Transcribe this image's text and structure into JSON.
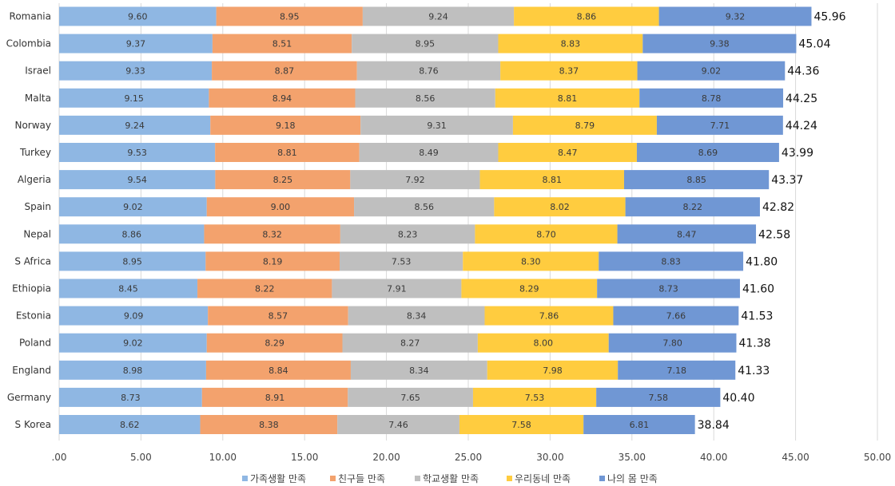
{
  "chart_data": {
    "type": "bar",
    "orientation": "horizontal",
    "stacked": true,
    "categories": [
      "Romania",
      "Colombia",
      "Israel",
      "Malta",
      "Norway",
      "Turkey",
      "Algeria",
      "Spain",
      "Nepal",
      "S Africa",
      "Ethiopia",
      "Estonia",
      "Poland",
      "England",
      "Germany",
      "S Korea"
    ],
    "series": [
      {
        "name": "가족생활 만족",
        "color": "#8fb7e3",
        "values": [
          9.6,
          9.37,
          9.33,
          9.15,
          9.24,
          9.53,
          9.54,
          9.02,
          8.86,
          8.95,
          8.45,
          9.09,
          9.02,
          8.98,
          8.73,
          8.62
        ]
      },
      {
        "name": "친구들 만족",
        "color": "#f3a26d",
        "values": [
          8.95,
          8.51,
          8.87,
          8.94,
          9.18,
          8.81,
          8.25,
          9.0,
          8.32,
          8.19,
          8.22,
          8.57,
          8.29,
          8.84,
          8.91,
          8.38
        ]
      },
      {
        "name": "학교생활 만족",
        "color": "#bfbfbf",
        "values": [
          9.24,
          8.95,
          8.76,
          8.56,
          9.31,
          8.49,
          7.92,
          8.56,
          8.23,
          7.53,
          7.91,
          8.34,
          8.27,
          8.34,
          7.65,
          7.46
        ]
      },
      {
        "name": "우리동네 만족",
        "color": "#ffcc3f",
        "values": [
          8.86,
          8.83,
          8.37,
          8.81,
          8.79,
          8.47,
          8.81,
          8.02,
          8.7,
          8.3,
          8.29,
          7.86,
          8.0,
          7.98,
          7.53,
          7.58
        ]
      },
      {
        "name": "나의 몸 만족",
        "color": "#7097d4",
        "values": [
          9.32,
          9.38,
          9.02,
          8.78,
          7.71,
          8.69,
          8.85,
          8.22,
          8.47,
          8.83,
          8.73,
          7.66,
          7.8,
          7.18,
          7.58,
          6.81
        ]
      }
    ],
    "series_label_strings": [
      [
        "9.60",
        "9.37",
        "9.33",
        "9.15",
        "9.24",
        "9.53",
        "9.54",
        "9.02",
        "8.86",
        "8.95",
        "8.45",
        "9.09",
        "9.02",
        "8.98",
        "8.73",
        "8.62"
      ],
      [
        "8.95",
        "8.51",
        "8.87",
        "8.94",
        "9.18",
        "8.81",
        "8.25",
        "9.00",
        "8.32",
        "8.19",
        "8.22",
        "8.57",
        "8.29",
        "8.84",
        "8.91",
        "8.38"
      ],
      [
        "9.24",
        "8.95",
        "8.76",
        "8.56",
        "9.31",
        "8.49",
        "7.92",
        "8.56",
        "8.23",
        "7.53",
        "7.91",
        "8.34",
        "8.27",
        "8.34",
        "7.65",
        "7.46"
      ],
      [
        "8.86",
        "8.83",
        "8.37",
        "8.81",
        "8.79",
        "8.47",
        "8.81",
        "8.02",
        "8.70",
        "8.30",
        "8.29",
        "7.86",
        "8.00",
        "7.98",
        "7.53",
        "7.58"
      ],
      [
        "9.32",
        "9.38",
        "9.02",
        "8.78",
        "7.71",
        "8.69",
        "8.85",
        "8.22",
        "8.47",
        "8.83",
        "8.73",
        "7.66",
        "7.80",
        "7.18",
        "7.58",
        "6.81"
      ]
    ],
    "totals": [
      45.96,
      45.04,
      44.36,
      44.25,
      44.24,
      43.99,
      43.37,
      42.82,
      42.58,
      41.8,
      41.6,
      41.53,
      41.38,
      41.33,
      40.4,
      38.84
    ],
    "total_labels": [
      "45.96",
      "45.04",
      "44.36",
      "44.25",
      "44.24",
      "43.99",
      "43.37",
      "42.82",
      "42.58",
      "41.80",
      "41.60",
      "41.53",
      "41.38",
      "41.33",
      "40.40",
      "38.84"
    ],
    "xlim": [
      0,
      50
    ],
    "xticks": [
      0,
      5,
      10,
      15,
      20,
      25,
      30,
      35,
      40,
      45,
      50
    ],
    "xtick_labels": [
      ".00",
      "5.00",
      "10.00",
      "15.00",
      "20.00",
      "25.00",
      "30.00",
      "35.00",
      "40.00",
      "45.00",
      "50.00"
    ],
    "grid": true,
    "legend_position": "bottom",
    "title": "",
    "xlabel": "",
    "ylabel": ""
  }
}
